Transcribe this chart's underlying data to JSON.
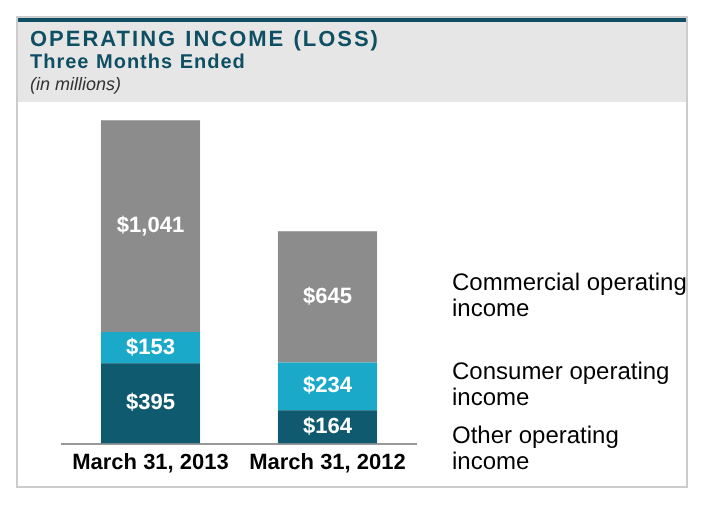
{
  "chart_data": {
    "type": "bar",
    "title": "OPERATING INCOME (LOSS)",
    "subtitle": "Three Months Ended",
    "annotations": [
      "(in millions)"
    ],
    "categories": [
      "March 31, 2013",
      "March 31, 2012"
    ],
    "stacked": true,
    "legend": false,
    "grid": false,
    "series": [
      {
        "name": "Other operating income",
        "color": "#0f5a6e",
        "values": [
          395,
          164
        ],
        "value_labels": [
          "$395",
          "$164"
        ]
      },
      {
        "name": "Consumer operating income",
        "color": "#1ba9c9",
        "values": [
          153,
          234
        ],
        "value_labels": [
          "$153",
          "$234"
        ]
      },
      {
        "name": "Commercial operating income",
        "color": "#8c8c8c",
        "values": [
          1041,
          645
        ],
        "value_labels": [
          "$1,041",
          "$645"
        ]
      }
    ]
  }
}
